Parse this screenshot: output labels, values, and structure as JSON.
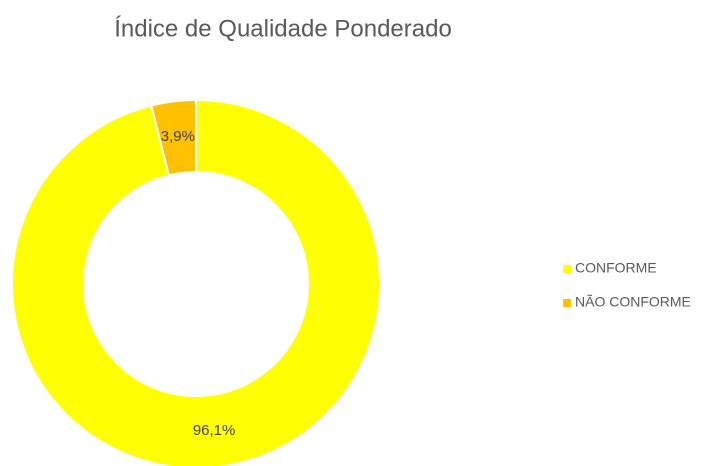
{
  "chart_data": {
    "type": "donut",
    "title": "Índice de Qualidade Ponderado",
    "categories": [
      "CONFORME",
      "NÃO CONFORME"
    ],
    "values": [
      96.1,
      3.9
    ],
    "value_labels": [
      "96,1%",
      "3,9%"
    ],
    "colors": [
      "#ffff00",
      "#ffc000"
    ],
    "legend": "right"
  }
}
